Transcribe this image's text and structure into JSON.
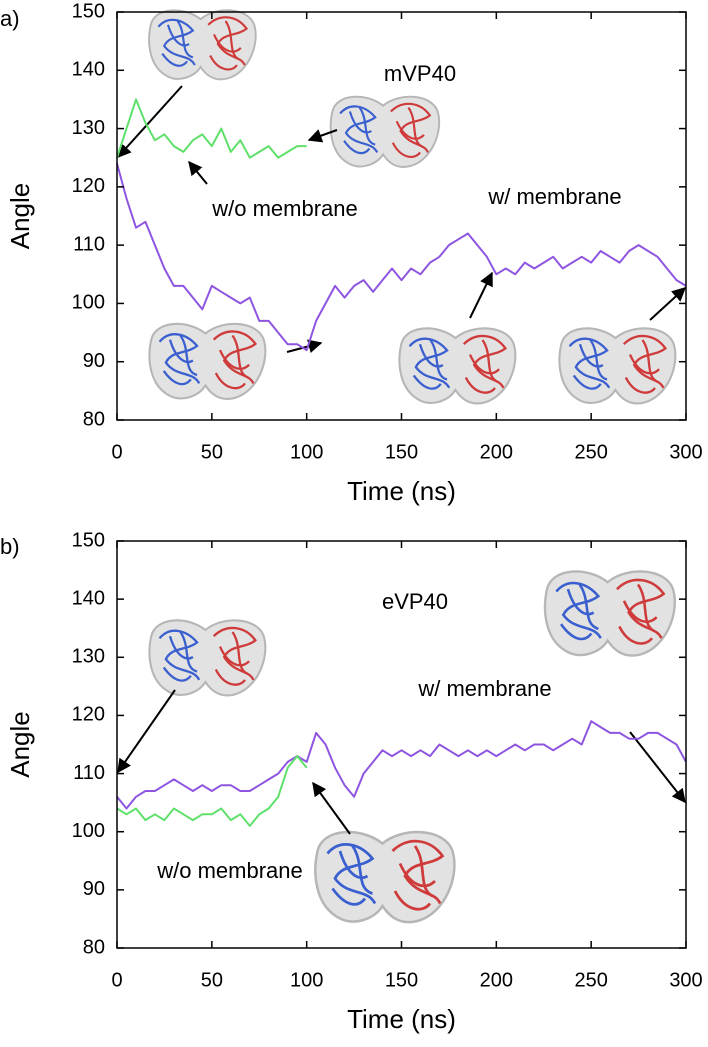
{
  "chart_data": [
    {
      "type": "line",
      "panel_label": "a)",
      "xlabel": "Time (ns)",
      "ylabel": "Angle",
      "annotations": [
        "mVP40",
        "w/o membrane",
        "w/ membrane"
      ],
      "x": [
        0,
        5,
        10,
        15,
        20,
        25,
        30,
        35,
        40,
        45,
        50,
        55,
        60,
        65,
        70,
        75,
        80,
        85,
        90,
        95,
        100,
        105,
        110,
        115,
        120,
        125,
        130,
        135,
        140,
        145,
        150,
        155,
        160,
        165,
        170,
        175,
        180,
        185,
        190,
        195,
        200,
        205,
        210,
        215,
        220,
        225,
        230,
        235,
        240,
        245,
        250,
        255,
        260,
        265,
        270,
        275,
        280,
        285,
        290,
        295,
        300
      ],
      "series": [
        {
          "color": "#8e55e0",
          "values": [
            124,
            118,
            113,
            114,
            110,
            106,
            103,
            103,
            101,
            99,
            103,
            102,
            101,
            100,
            101,
            97,
            97,
            95,
            93,
            93,
            92,
            97,
            100,
            103,
            101,
            103,
            104,
            102,
            104,
            106,
            104,
            106,
            105,
            107,
            108,
            110,
            111,
            112,
            110,
            108,
            105,
            106,
            105,
            107,
            106,
            107,
            108,
            106,
            107,
            108,
            107,
            109,
            108,
            107,
            109,
            110,
            109,
            108,
            106,
            104,
            103
          ]
        },
        {
          "color": "#5ee06a",
          "values": [
            125,
            130,
            135,
            131,
            128,
            129,
            127,
            126,
            128,
            129,
            127,
            130,
            126,
            128,
            125,
            126,
            127,
            125,
            126,
            127,
            127,
            null,
            null,
            null,
            null,
            null,
            null,
            null,
            null,
            null,
            null,
            null,
            null,
            null,
            null,
            null,
            null,
            null,
            null,
            null,
            null,
            null,
            null,
            null,
            null,
            null,
            null,
            null,
            null,
            null,
            null,
            null,
            null,
            null,
            null,
            null,
            null,
            null,
            null,
            null,
            null
          ]
        }
      ],
      "xlim": [
        0,
        300
      ],
      "xticks": [
        0,
        50,
        100,
        150,
        200,
        250,
        300
      ],
      "ylim": [
        80,
        150
      ],
      "yticks": [
        80,
        90,
        100,
        110,
        120,
        130,
        140,
        150
      ]
    },
    {
      "type": "line",
      "panel_label": "b)",
      "xlabel": "Time (ns)",
      "ylabel": "Angle",
      "annotations": [
        "eVP40",
        "w/ membrane",
        "w/o membrane"
      ],
      "x": [
        0,
        5,
        10,
        15,
        20,
        25,
        30,
        35,
        40,
        45,
        50,
        55,
        60,
        65,
        70,
        75,
        80,
        85,
        90,
        95,
        100,
        105,
        110,
        115,
        120,
        125,
        130,
        135,
        140,
        145,
        150,
        155,
        160,
        165,
        170,
        175,
        180,
        185,
        190,
        195,
        200,
        205,
        210,
        215,
        220,
        225,
        230,
        235,
        240,
        245,
        250,
        255,
        260,
        265,
        270,
        275,
        280,
        285,
        290,
        295,
        300
      ],
      "series": [
        {
          "color": "#8e55e0",
          "values": [
            106,
            104,
            106,
            107,
            107,
            108,
            109,
            108,
            107,
            108,
            107,
            108,
            108,
            107,
            107,
            108,
            109,
            110,
            112,
            113,
            112,
            117,
            115,
            111,
            108,
            106,
            110,
            112,
            114,
            113,
            114,
            113,
            114,
            113,
            115,
            114,
            113,
            114,
            113,
            114,
            113,
            114,
            115,
            114,
            115,
            115,
            114,
            115,
            116,
            115,
            119,
            118,
            117,
            117,
            116,
            116,
            117,
            117,
            116,
            115,
            112
          ]
        },
        {
          "color": "#5ee06a",
          "values": [
            104,
            103,
            104,
            102,
            103,
            102,
            104,
            103,
            102,
            103,
            103,
            104,
            102,
            103,
            101,
            103,
            104,
            106,
            111,
            113,
            111,
            null,
            null,
            null,
            null,
            null,
            null,
            null,
            null,
            null,
            null,
            null,
            null,
            null,
            null,
            null,
            null,
            null,
            null,
            null,
            null,
            null,
            null,
            null,
            null,
            null,
            null,
            null,
            null,
            null,
            null,
            null,
            null,
            null,
            null,
            null,
            null,
            null,
            null,
            null,
            null
          ]
        }
      ],
      "xlim": [
        0,
        300
      ],
      "xticks": [
        0,
        50,
        100,
        150,
        200,
        250,
        300
      ],
      "ylim": [
        80,
        150
      ],
      "yticks": [
        80,
        90,
        100,
        110,
        120,
        130,
        140,
        150
      ]
    }
  ]
}
